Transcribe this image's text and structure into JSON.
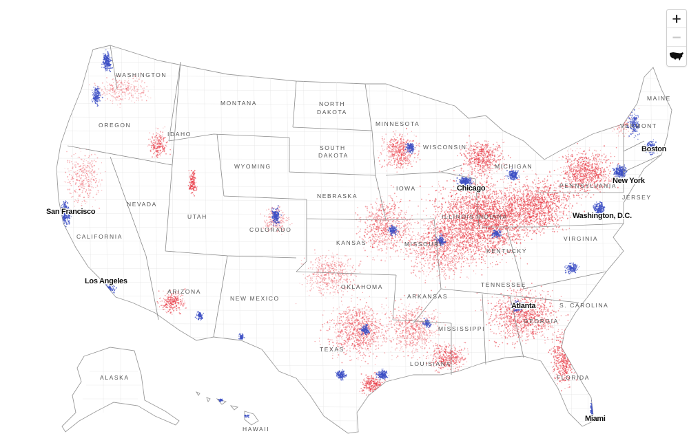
{
  "map": {
    "colors": {
      "red": "#e8343f",
      "blue": "#3c4fc4",
      "background": "#ffffff"
    },
    "state_labels": [
      {
        "id": "washington",
        "text": "WASHINGTON"
      },
      {
        "id": "oregon",
        "text": "OREGON"
      },
      {
        "id": "idaho",
        "text": "IDAHO"
      },
      {
        "id": "montana",
        "text": "MONTANA"
      },
      {
        "id": "north-dakota-1",
        "text": "NORTH"
      },
      {
        "id": "north-dakota-2",
        "text": "DAKOTA"
      },
      {
        "id": "south-dakota-1",
        "text": "SOUTH"
      },
      {
        "id": "south-dakota-2",
        "text": "DAKOTA"
      },
      {
        "id": "minnesota",
        "text": "MINNESOTA"
      },
      {
        "id": "wisconsin",
        "text": "WISCONSIN"
      },
      {
        "id": "wyoming",
        "text": "WYOMING"
      },
      {
        "id": "nevada",
        "text": "NEVADA"
      },
      {
        "id": "utah",
        "text": "UTAH"
      },
      {
        "id": "colorado",
        "text": "COLORADO"
      },
      {
        "id": "nebraska",
        "text": "NEBRASKA"
      },
      {
        "id": "iowa",
        "text": "IOWA"
      },
      {
        "id": "illinois",
        "text": "ILLINOIS"
      },
      {
        "id": "indiana",
        "text": "INDIANA"
      },
      {
        "id": "michigan",
        "text": "MICHIGAN"
      },
      {
        "id": "kansas",
        "text": "KANSAS"
      },
      {
        "id": "missouri",
        "text": "MISSOURI"
      },
      {
        "id": "kentucky",
        "text": "KENTUCKY"
      },
      {
        "id": "california",
        "text": "CALIFORNIA"
      },
      {
        "id": "arizona",
        "text": "ARIZONA"
      },
      {
        "id": "new-mexico",
        "text": "NEW MEXICO"
      },
      {
        "id": "oklahoma",
        "text": "OKLAHOMA"
      },
      {
        "id": "arkansas",
        "text": "ARKANSAS"
      },
      {
        "id": "tennessee",
        "text": "TENNESSEE"
      },
      {
        "id": "texas",
        "text": "TEXAS"
      },
      {
        "id": "mississippi",
        "text": "MISSISSIPPI"
      },
      {
        "id": "louisiana",
        "text": "LOUISIANA"
      },
      {
        "id": "georgia",
        "text": "GEORGIA"
      },
      {
        "id": "south-carolina",
        "text": "S. CAROLINA"
      },
      {
        "id": "florida",
        "text": "FLORIDA"
      },
      {
        "id": "virginia",
        "text": "VIRGINIA"
      },
      {
        "id": "pennsylvania",
        "text": "PENNSYLVANIA"
      },
      {
        "id": "new-jersey",
        "text": "JERSEY"
      },
      {
        "id": "vermont",
        "text": "VERMONT"
      },
      {
        "id": "maine",
        "text": "MAINE"
      },
      {
        "id": "alaska",
        "text": "ALASKA"
      },
      {
        "id": "hawaii",
        "text": "HAWAII"
      }
    ],
    "city_labels": [
      {
        "id": "san-francisco",
        "text": "San Francisco"
      },
      {
        "id": "los-angeles",
        "text": "Los Angeles"
      },
      {
        "id": "chicago",
        "text": "Chicago"
      },
      {
        "id": "new-york",
        "text": "New York"
      },
      {
        "id": "boston",
        "text": "Boston"
      },
      {
        "id": "washington-dc",
        "text": "Washington, D.C."
      },
      {
        "id": "atlanta",
        "text": "Atlanta"
      },
      {
        "id": "miami",
        "text": "Miami"
      }
    ]
  },
  "controls": {
    "zoom_in_label": "+",
    "zoom_out_label": "−",
    "reset_icon": "us-map-icon"
  }
}
